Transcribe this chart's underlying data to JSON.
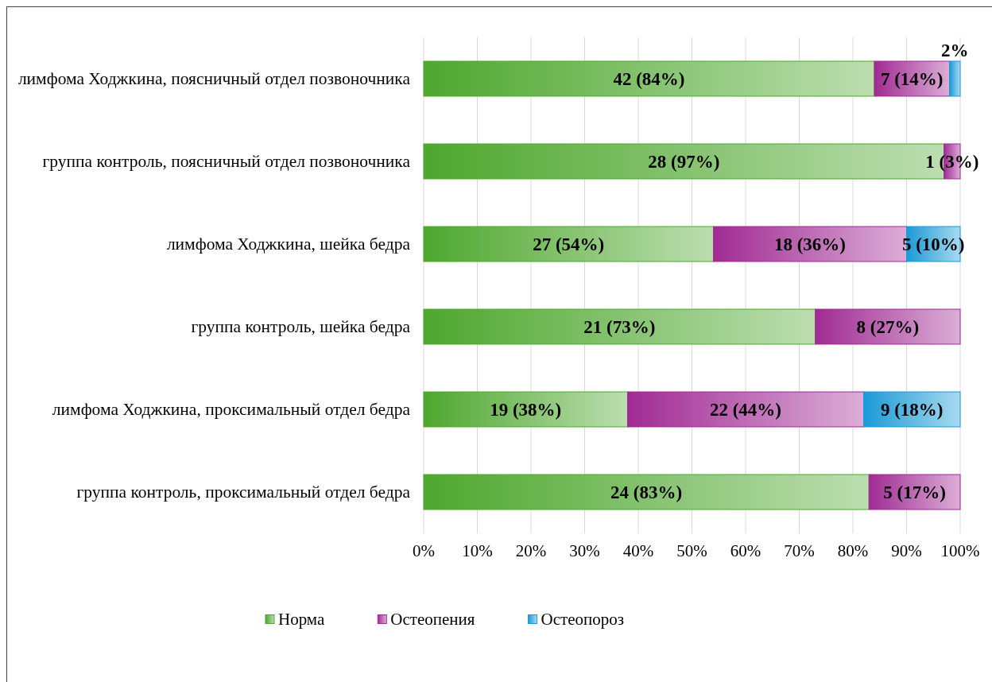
{
  "chart_data": {
    "type": "bar",
    "orientation": "horizontal",
    "stacked": true,
    "categories": [
      "лимфома Ходжкина, поясничный отдел позвоночника",
      "группа контроль, поясничный отдел позвоночника",
      "лимфома Ходжкина, шейка бедра",
      "группа контроль, шейка бедра",
      "лимфома Ходжкина, проксимальный отдел бедра",
      "группа контроль, проксимальный отдел бедра"
    ],
    "series": [
      {
        "name": "Норма",
        "color": "#4ea72e",
        "values": [
          84,
          97,
          54,
          73,
          38,
          83
        ],
        "value_labels": [
          "42 (84%)",
          "28 (97%)",
          "27 (54%)",
          "21 (73%)",
          "19 (38%)",
          "24 (83%)"
        ]
      },
      {
        "name": "Остеопения",
        "color": "#a02b93",
        "values": [
          14,
          3,
          36,
          27,
          44,
          17
        ],
        "value_labels": [
          "7 (14%)",
          "1 (3%)",
          "18 (36%)",
          "8 (27%)",
          "22 (44%)",
          "5 (17%)"
        ]
      },
      {
        "name": "Остеопороз",
        "color": "#1a9ad6",
        "values": [
          2,
          null,
          10,
          null,
          18,
          null
        ],
        "value_labels": [
          "2%",
          null,
          "5 (10%)",
          null,
          "9 (18%)",
          null
        ]
      }
    ],
    "xlim": [
      0,
      100
    ],
    "xticks": [
      {
        "value": 0,
        "label": "0%"
      },
      {
        "value": 10,
        "label": "10%"
      },
      {
        "value": 20,
        "label": "20%"
      },
      {
        "value": 30,
        "label": "30%"
      },
      {
        "value": 40,
        "label": "40%"
      },
      {
        "value": 50,
        "label": "50%"
      },
      {
        "value": 60,
        "label": "60%"
      },
      {
        "value": 70,
        "label": "70%"
      },
      {
        "value": 80,
        "label": "80%"
      },
      {
        "value": 90,
        "label": "90%"
      },
      {
        "value": 100,
        "label": "100%"
      }
    ],
    "grid": "x",
    "legend": "bottom"
  }
}
